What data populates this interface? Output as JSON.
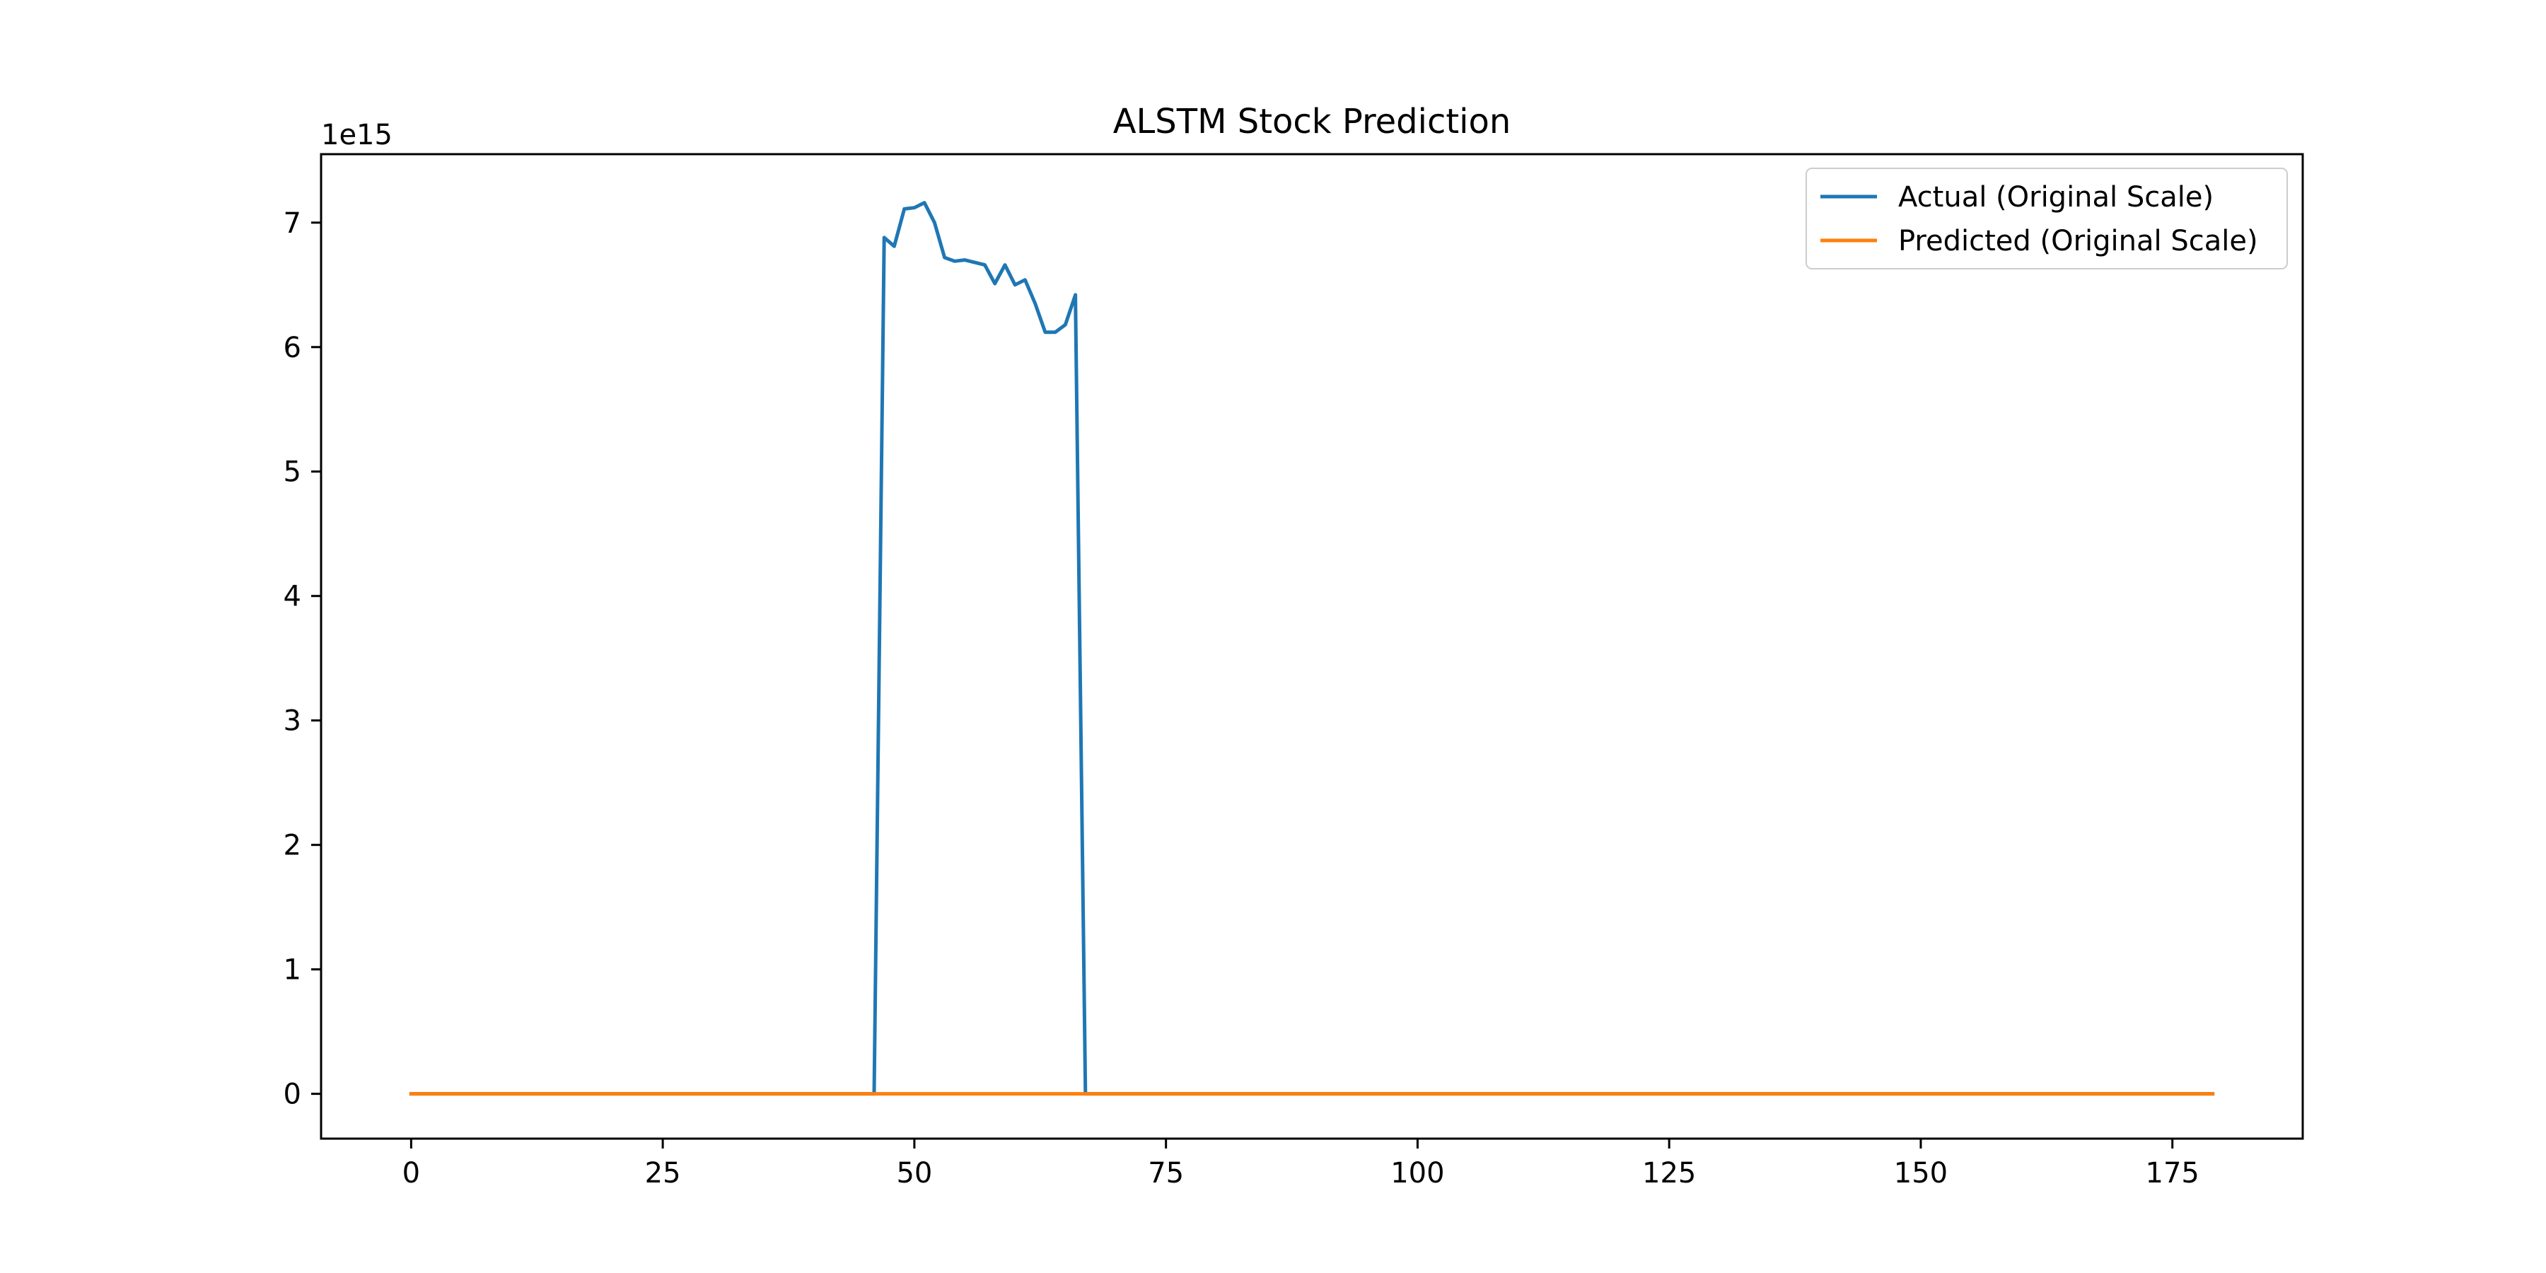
{
  "chart_data": {
    "type": "line",
    "title": "ALSTM Stock Prediction",
    "xlabel": "",
    "ylabel": "",
    "y_offset_label": "1e15",
    "xlim": [
      -8.95,
      187.95
    ],
    "ylim": [
      -0.36,
      7.55
    ],
    "y_unit_multiplier": 1000000000000000.0,
    "x_ticks": [
      0,
      25,
      50,
      75,
      100,
      125,
      150,
      175
    ],
    "y_ticks": [
      0,
      1,
      2,
      3,
      4,
      5,
      6,
      7
    ],
    "grid": false,
    "legend_position": "upper right",
    "series": [
      {
        "name": "Actual (Original Scale)",
        "color": "#1f77b4",
        "points": [
          [
            0,
            0
          ],
          [
            46,
            0
          ],
          [
            47,
            6.88
          ],
          [
            48,
            6.81
          ],
          [
            49,
            7.11
          ],
          [
            50,
            7.12
          ],
          [
            51,
            7.16
          ],
          [
            52,
            7.0
          ],
          [
            53,
            6.72
          ],
          [
            54,
            6.69
          ],
          [
            55,
            6.7
          ],
          [
            56,
            6.68
          ],
          [
            57,
            6.66
          ],
          [
            58,
            6.51
          ],
          [
            59,
            6.66
          ],
          [
            60,
            6.5
          ],
          [
            61,
            6.54
          ],
          [
            62,
            6.35
          ],
          [
            63,
            6.12
          ],
          [
            64,
            6.12
          ],
          [
            65,
            6.18
          ],
          [
            66,
            6.42
          ],
          [
            67,
            0
          ],
          [
            179,
            0
          ]
        ]
      },
      {
        "name": "Predicted (Original Scale)",
        "color": "#ff7f0e",
        "points": [
          [
            0,
            0
          ],
          [
            179,
            0
          ]
        ]
      }
    ]
  }
}
